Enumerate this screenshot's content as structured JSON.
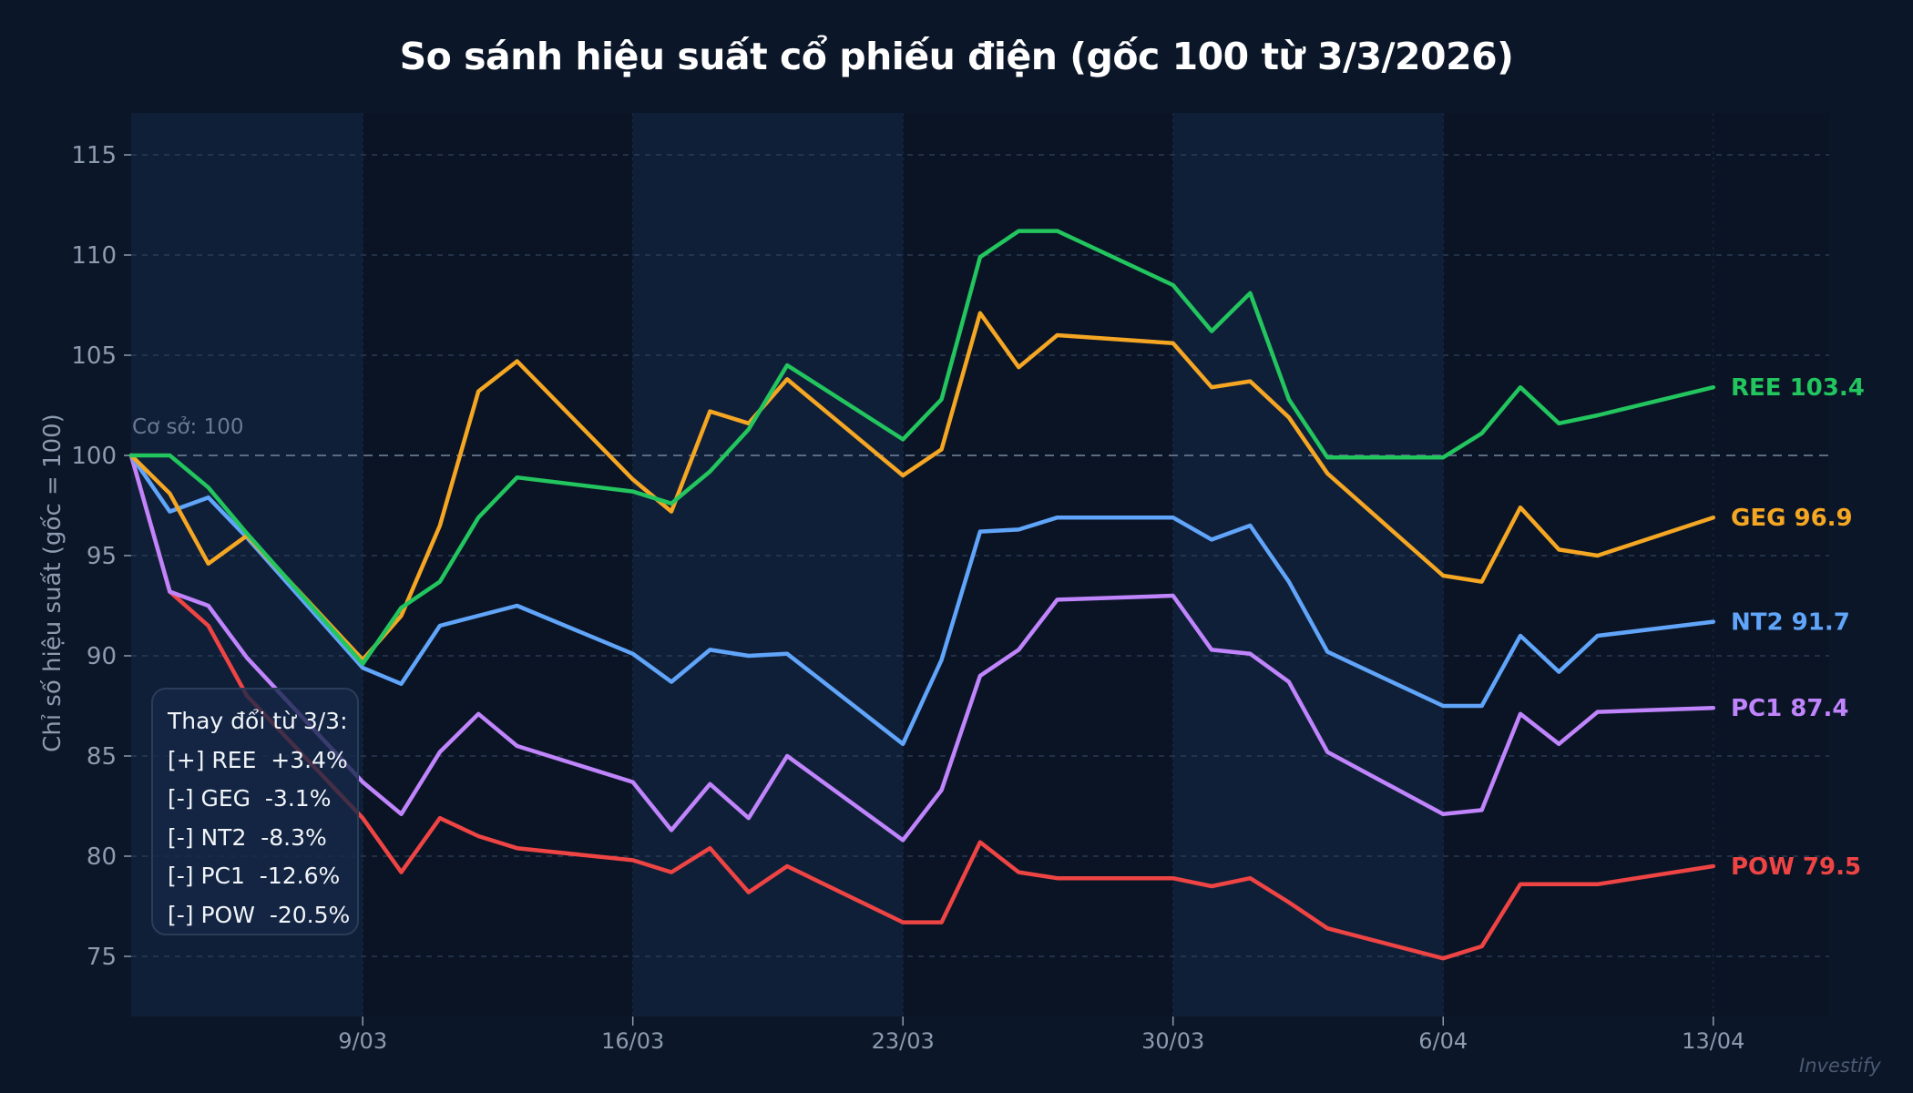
{
  "title": "So sánh hiệu suất cổ phiếu điện (gốc 100 từ 3/3/2026)",
  "watermark": "Investify",
  "colors": {
    "background": "#0b1628",
    "band": "#101f38",
    "grid": "#2a3a55",
    "baseline": "#5b6b82",
    "axis_text": "#8d9bb0"
  },
  "baseline_label": "Cơ sở: 100",
  "summary_box": {
    "title": "Thay đổi từ 3/3:",
    "lines": [
      "[+] REE  +3.4%",
      "[-] GEG  -3.1%",
      "[-] NT2  -8.3%",
      "[-] PC1  -12.6%",
      "[-] POW  -20.5%"
    ]
  },
  "chart_data": {
    "type": "line",
    "title": "So sánh hiệu suất cổ phiếu điện (gốc 100 từ 3/3/2026)",
    "xlabel": "",
    "ylabel": "Chỉ số hiệu suất (gốc = 100)",
    "ylim": [
      72,
      117
    ],
    "yticks": [
      75,
      80,
      85,
      90,
      95,
      100,
      105,
      110,
      115
    ],
    "xtick_labels": [
      "9/03",
      "16/03",
      "23/03",
      "30/03",
      "6/04",
      "13/04"
    ],
    "grid": true,
    "baseline": 100,
    "x": [
      "3/03",
      "4/03",
      "5/03",
      "6/03",
      "9/03",
      "10/03",
      "11/03",
      "12/03",
      "13/03",
      "16/03",
      "17/03",
      "18/03",
      "19/03",
      "20/03",
      "23/03",
      "24/03",
      "25/03",
      "26/03",
      "27/03",
      "30/03",
      "31/03",
      "1/04",
      "2/04",
      "3/04",
      "6/04",
      "7/04",
      "8/04",
      "9/04",
      "10/04",
      "13/04"
    ],
    "x_day_index": [
      0,
      1,
      2,
      3,
      6,
      7,
      8,
      9,
      10,
      13,
      14,
      15,
      16,
      17,
      20,
      21,
      22,
      23,
      24,
      27,
      28,
      29,
      30,
      31,
      34,
      35,
      36,
      37,
      38,
      41
    ],
    "series": [
      {
        "name": "REE",
        "color": "#22c55e",
        "final": "103.4",
        "values": [
          100,
          100,
          98.4,
          96.1,
          89.6,
          92.4,
          93.7,
          96.9,
          98.9,
          98.2,
          97.6,
          99.2,
          101.3,
          104.5,
          100.8,
          102.8,
          109.9,
          111.2,
          111.2,
          108.5,
          106.2,
          108.1,
          102.8,
          99.9,
          99.9,
          101.1,
          103.4,
          101.6,
          102.0,
          103.4
        ]
      },
      {
        "name": "GEG",
        "color": "#f5a623",
        "final": "96.9",
        "values": [
          100,
          98.1,
          94.6,
          96.0,
          89.8,
          92.0,
          96.5,
          103.2,
          104.7,
          98.8,
          97.2,
          102.2,
          101.6,
          103.8,
          99.0,
          100.3,
          107.1,
          104.4,
          106.0,
          105.6,
          103.4,
          103.7,
          101.9,
          99.1,
          94.0,
          93.7,
          97.4,
          95.3,
          95.0,
          96.9
        ]
      },
      {
        "name": "NT2",
        "color": "#60a5fa",
        "final": "91.7",
        "values": [
          100,
          97.2,
          97.9,
          95.9,
          89.4,
          88.6,
          91.5,
          92.0,
          92.5,
          90.1,
          88.7,
          90.3,
          90.0,
          90.1,
          85.6,
          89.8,
          96.2,
          96.3,
          96.9,
          96.9,
          95.8,
          96.5,
          93.7,
          90.2,
          87.5,
          87.5,
          91.0,
          89.2,
          91.0,
          91.7
        ]
      },
      {
        "name": "PC1",
        "color": "#c084fc",
        "final": "87.4",
        "values": [
          100,
          93.2,
          92.5,
          89.9,
          83.7,
          82.1,
          85.2,
          87.1,
          85.5,
          83.7,
          81.3,
          83.6,
          81.9,
          85.0,
          80.8,
          83.3,
          89.0,
          90.3,
          92.8,
          93.0,
          90.3,
          90.1,
          88.7,
          85.2,
          82.1,
          82.3,
          87.1,
          85.6,
          87.2,
          87.4
        ]
      },
      {
        "name": "POW",
        "color": "#ef4444",
        "final": "79.5",
        "values": [
          100,
          93.2,
          91.5,
          88.0,
          81.9,
          79.2,
          81.9,
          81.0,
          80.4,
          79.8,
          79.2,
          80.4,
          78.2,
          79.5,
          76.7,
          76.7,
          80.7,
          79.2,
          78.9,
          78.9,
          78.5,
          78.9,
          77.7,
          76.4,
          74.9,
          75.5,
          78.6,
          78.6,
          78.6,
          79.5
        ]
      }
    ],
    "shaded_weeks": [
      [
        0,
        6
      ],
      [
        13,
        20
      ],
      [
        27,
        34
      ]
    ],
    "legend_position": "end-of-line labels"
  }
}
